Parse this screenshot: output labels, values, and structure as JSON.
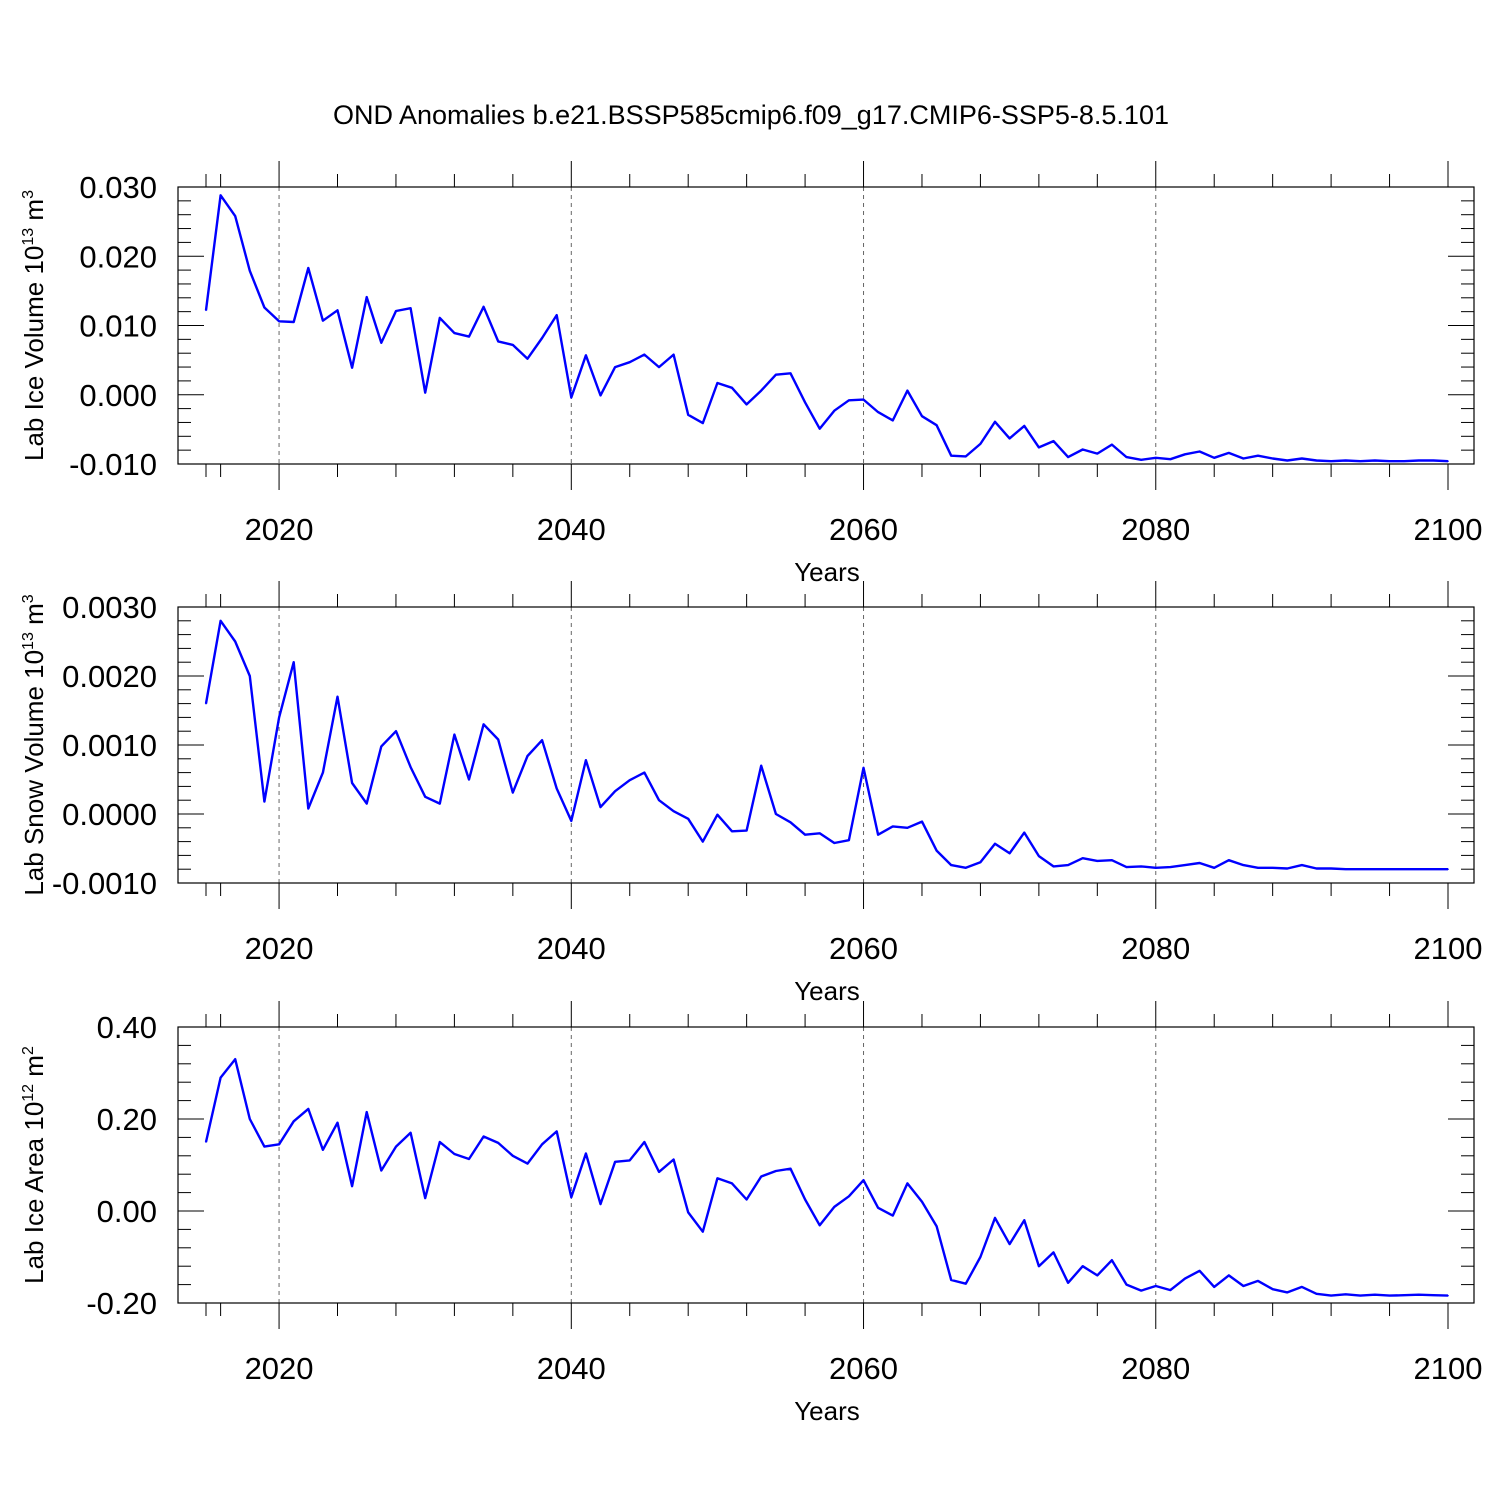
{
  "title": "OND Anomalies b.e21.BSSP585cmip6.f09_g17.CMIP6-SSP5-8.5.101",
  "colors": {
    "line": "#0000ff",
    "frame": "#000000",
    "grid": "#666666"
  },
  "chart_data": [
    {
      "type": "line",
      "ylabel": {
        "text": "Lab Ice Volume 10",
        "sup": "13",
        "unit": " m",
        "unit_sup": "3"
      },
      "xlabel": "Years",
      "xlim": [
        2015,
        2100
      ],
      "ylim": [
        -0.01,
        0.03
      ],
      "yticks": [
        -0.01,
        0.0,
        0.01,
        0.02,
        0.03
      ],
      "ytick_labels": [
        "-0.010",
        "0.000",
        "0.010",
        "0.020",
        "0.030"
      ],
      "xticks": [
        2020,
        2040,
        2060,
        2080,
        2100
      ],
      "xtick_labels": [
        "2020",
        "2040",
        "2060",
        "2080",
        "2100"
      ],
      "grid_x": [
        2020,
        2040,
        2060,
        2080
      ],
      "series": [
        {
          "name": "Lab Ice Volume",
          "x_start": 2015,
          "values": [
            0.0122,
            0.0288,
            0.0258,
            0.0179,
            0.0126,
            0.0106,
            0.0105,
            0.0183,
            0.0107,
            0.0122,
            0.0039,
            0.0141,
            0.0075,
            0.0121,
            0.0125,
            0.0003,
            0.0111,
            0.0089,
            0.0084,
            0.0127,
            0.0077,
            0.0072,
            0.0052,
            0.0082,
            0.0115,
            -0.0004,
            0.0057,
            -0.0001,
            0.004,
            0.0047,
            0.0058,
            0.004,
            0.0058,
            -0.0029,
            -0.0041,
            0.0017,
            0.001,
            -0.0014,
            0.0006,
            0.0029,
            0.0031,
            -0.0011,
            -0.0049,
            -0.0023,
            -0.0008,
            -0.0007,
            -0.0025,
            -0.0037,
            0.0006,
            -0.0031,
            -0.0044,
            -0.0088,
            -0.0089,
            -0.0071,
            -0.0039,
            -0.0063,
            -0.0045,
            -0.0076,
            -0.0067,
            -0.009,
            -0.0079,
            -0.0085,
            -0.0072,
            -0.009,
            -0.0094,
            -0.0091,
            -0.0093,
            -0.0086,
            -0.0082,
            -0.0091,
            -0.0084,
            -0.0092,
            -0.0088,
            -0.0092,
            -0.0095,
            -0.0092,
            -0.0095,
            -0.0096,
            -0.0095,
            -0.0096,
            -0.0095,
            -0.0096,
            -0.0096,
            -0.0095,
            -0.0095,
            -0.0096
          ]
        }
      ]
    },
    {
      "type": "line",
      "ylabel": {
        "text": "Lab Snow Volume 10",
        "sup": "13",
        "unit": " m",
        "unit_sup": "3"
      },
      "xlabel": "Years",
      "xlim": [
        2015,
        2100
      ],
      "ylim": [
        -0.001,
        0.003
      ],
      "yticks": [
        -0.001,
        0.0,
        0.001,
        0.002,
        0.003
      ],
      "ytick_labels": [
        "-0.0010",
        "0.0000",
        "0.0010",
        "0.0020",
        "0.0030"
      ],
      "xticks": [
        2020,
        2040,
        2060,
        2080,
        2100
      ],
      "xtick_labels": [
        "2020",
        "2040",
        "2060",
        "2080",
        "2100"
      ],
      "grid_x": [
        2020,
        2040,
        2060,
        2080
      ],
      "series": [
        {
          "name": "Lab Snow Volume",
          "x_start": 2015,
          "values": [
            0.0016,
            0.0028,
            0.0025,
            0.002,
            0.00018,
            0.0014,
            0.0022,
            8e-05,
            0.0006,
            0.0017,
            0.00045,
            0.00015,
            0.00098,
            0.0012,
            0.00068,
            0.00025,
            0.00015,
            0.00115,
            0.0005,
            0.0013,
            0.00108,
            0.00031,
            0.00084,
            0.00107,
            0.00037,
            -0.0001,
            0.00078,
            0.0001,
            0.00033,
            0.00049,
            0.0006,
            0.0002,
            4e-05,
            -7e-05,
            -0.0004,
            -1e-05,
            -0.00025,
            -0.00024,
            0.0007,
            0.0,
            -0.00012,
            -0.0003,
            -0.00028,
            -0.00042,
            -0.00038,
            0.00067,
            -0.0003,
            -0.00018,
            -0.0002,
            -0.00011,
            -0.00053,
            -0.00074,
            -0.00078,
            -0.0007,
            -0.00043,
            -0.00057,
            -0.00027,
            -0.00061,
            -0.00076,
            -0.00074,
            -0.00064,
            -0.00068,
            -0.00067,
            -0.00077,
            -0.00076,
            -0.00078,
            -0.00077,
            -0.00074,
            -0.00071,
            -0.00078,
            -0.00067,
            -0.00074,
            -0.00078,
            -0.00078,
            -0.00079,
            -0.00074,
            -0.00079,
            -0.00079,
            -0.0008,
            -0.0008,
            -0.0008,
            -0.0008,
            -0.0008,
            -0.0008,
            -0.0008,
            -0.0008
          ]
        }
      ]
    },
    {
      "type": "line",
      "ylabel": {
        "text": "Lab Ice Area 10",
        "sup": "12",
        "unit": " m",
        "unit_sup": "2"
      },
      "xlabel": "Years",
      "xlim": [
        2015,
        2100
      ],
      "ylim": [
        -0.2,
        0.4
      ],
      "yticks": [
        -0.2,
        0.0,
        0.2,
        0.4
      ],
      "ytick_labels": [
        "-0.20",
        "0.00",
        "0.20",
        "0.40"
      ],
      "xticks": [
        2020,
        2040,
        2060,
        2080,
        2100
      ],
      "xtick_labels": [
        "2020",
        "2040",
        "2060",
        "2080",
        "2100"
      ],
      "grid_x": [
        2020,
        2040,
        2060,
        2080
      ],
      "series": [
        {
          "name": "Lab Ice Area",
          "x_start": 2015,
          "values": [
            0.15,
            0.29,
            0.33,
            0.2,
            0.14,
            0.145,
            0.195,
            0.222,
            0.133,
            0.192,
            0.054,
            0.215,
            0.088,
            0.14,
            0.17,
            0.028,
            0.15,
            0.124,
            0.113,
            0.162,
            0.148,
            0.12,
            0.103,
            0.145,
            0.173,
            0.03,
            0.125,
            0.015,
            0.107,
            0.11,
            0.15,
            0.085,
            0.112,
            -0.003,
            -0.045,
            0.071,
            0.06,
            0.025,
            0.075,
            0.087,
            0.092,
            0.025,
            -0.031,
            0.009,
            0.032,
            0.067,
            0.007,
            -0.01,
            0.06,
            0.02,
            -0.033,
            -0.15,
            -0.158,
            -0.1,
            -0.015,
            -0.072,
            -0.02,
            -0.12,
            -0.09,
            -0.156,
            -0.12,
            -0.14,
            -0.107,
            -0.16,
            -0.173,
            -0.163,
            -0.172,
            -0.147,
            -0.13,
            -0.165,
            -0.14,
            -0.163,
            -0.152,
            -0.17,
            -0.177,
            -0.165,
            -0.18,
            -0.184,
            -0.181,
            -0.184,
            -0.182,
            -0.184,
            -0.183,
            -0.182,
            -0.183,
            -0.184
          ]
        }
      ]
    }
  ]
}
